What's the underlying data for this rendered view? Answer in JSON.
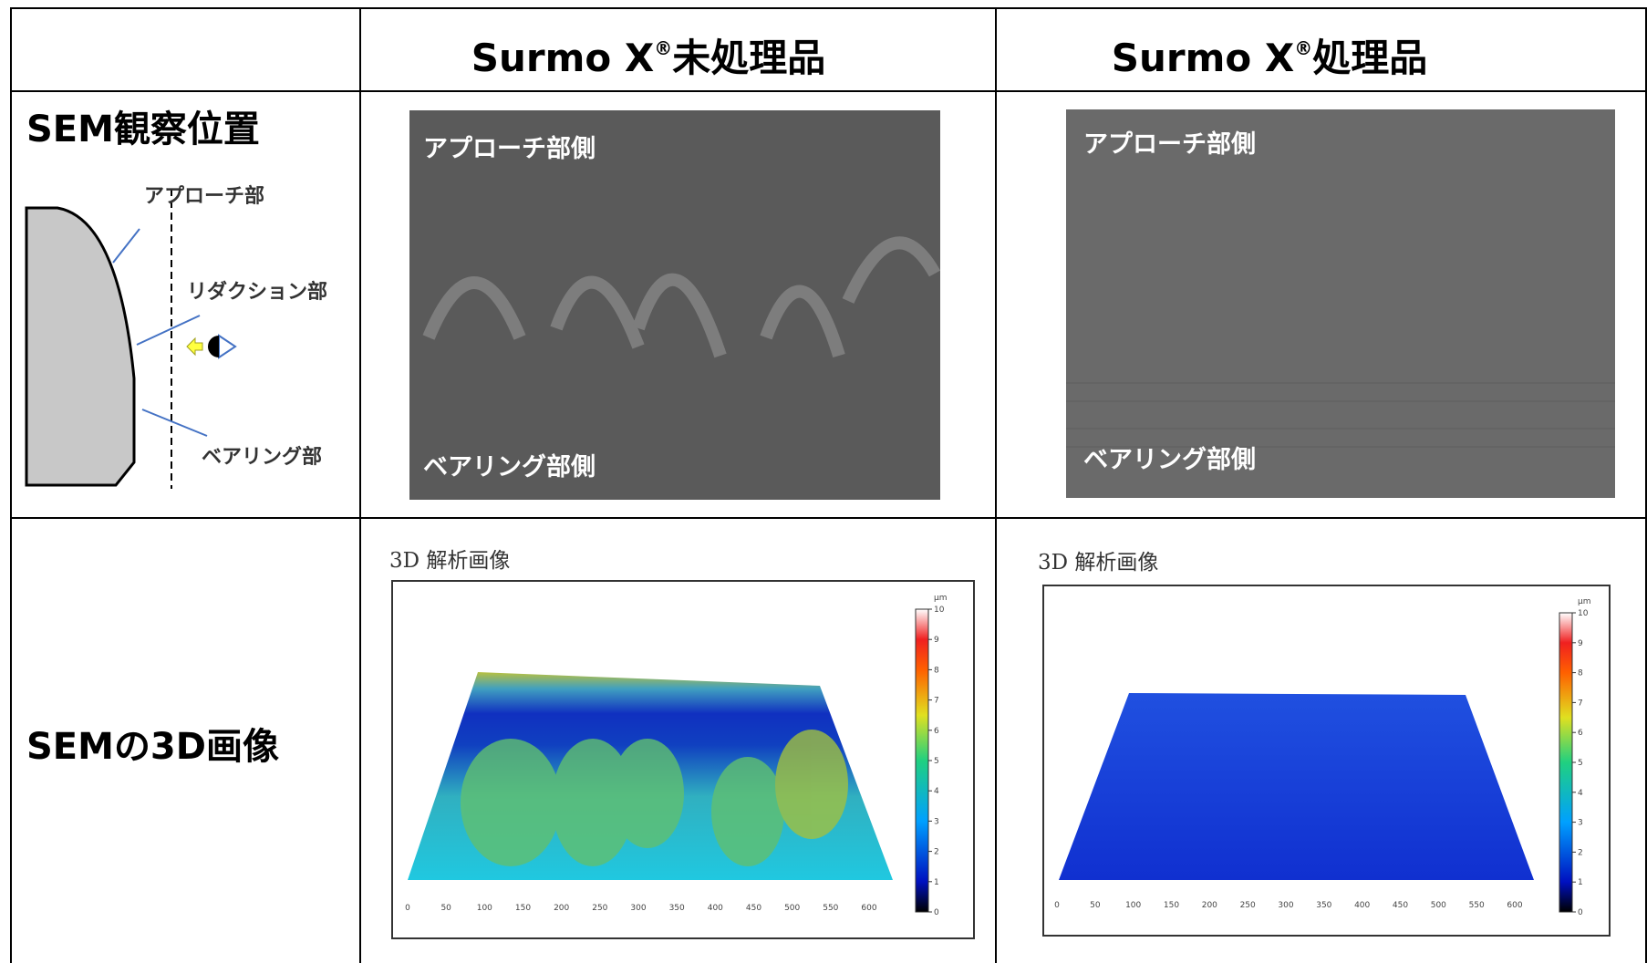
{
  "header": {
    "columns": [
      {
        "name": "Surmo X",
        "mark": "®",
        "suffix": "未処理品"
      },
      {
        "name": "Surmo X",
        "mark": "®",
        "suffix": "処理品"
      }
    ]
  },
  "rows": [
    {
      "label": "SEM観察位置",
      "diagram": {
        "labels": [
          "アプローチ部",
          "リダクション部",
          "ベアリング部"
        ]
      },
      "images": [
        {
          "top": "アプローチ部側",
          "bottom": "ベアリング部側"
        },
        {
          "top": "アプローチ部側",
          "bottom": "ベアリング部側"
        }
      ]
    },
    {
      "label": "SEMの3D画像",
      "panels": [
        {
          "title": "3D 解析画像"
        },
        {
          "title": "3D 解析画像"
        }
      ]
    }
  ],
  "plot3d": {
    "unit": "μm",
    "scale_ticks": [
      0,
      1,
      2,
      3,
      4,
      5,
      6,
      7,
      8,
      9,
      10
    ],
    "x_ticks": [
      0,
      50,
      100,
      150,
      200,
      250,
      300,
      350,
      400,
      450,
      500,
      550,
      600
    ]
  }
}
